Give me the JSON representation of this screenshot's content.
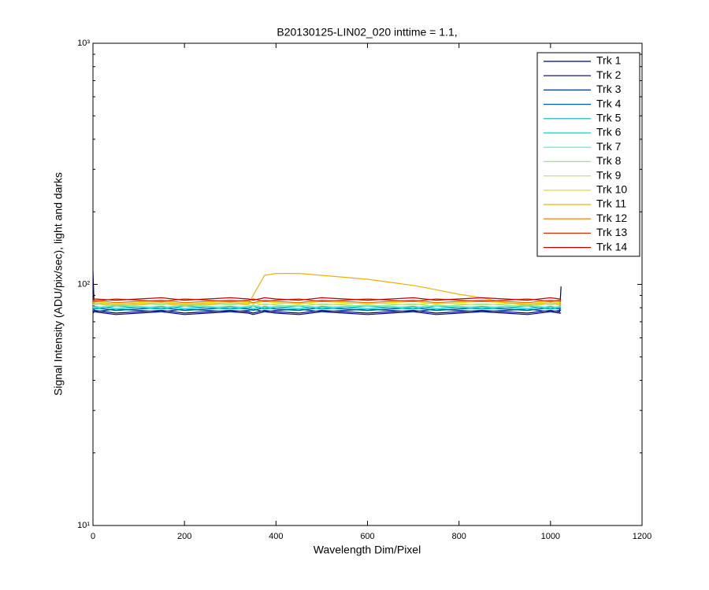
{
  "chart_data": {
    "type": "line",
    "title": "B20130125-LIN02_020 inttime = 1.1,",
    "x_label": "Wavelength Dim/Pixel",
    "y_label": "Signal Intensity (ADU/pix/sec), light and darks",
    "log_y": true,
    "legend": "upper right",
    "xlim": [
      0,
      1200
    ],
    "xticks": [
      0,
      200,
      400,
      600,
      800,
      1000,
      1200
    ],
    "ylim": [
      10,
      1000
    ],
    "yticks": [
      {
        "value": 10,
        "label": "10¹"
      },
      {
        "value": 100,
        "label": "10²"
      },
      {
        "value": 1000,
        "label": "10³"
      }
    ],
    "yminorticks": [
      20,
      30,
      40,
      50,
      60,
      70,
      80,
      90,
      200,
      300,
      400,
      500,
      600,
      700,
      800,
      900
    ],
    "x": [
      0,
      3,
      50,
      100,
      150,
      200,
      250,
      300,
      340,
      350,
      375,
      400,
      450,
      500,
      550,
      600,
      650,
      700,
      750,
      800,
      850,
      900,
      950,
      1000,
      1020,
      1023
    ],
    "series": [
      {
        "name": "Trk 1",
        "color": "#00008f",
        "values": [
          76,
          77,
          75,
          76,
          77,
          75,
          76,
          77,
          76,
          75,
          77,
          76,
          75,
          77,
          76,
          75,
          76,
          77,
          75,
          76,
          77,
          76,
          75,
          77,
          76,
          76
        ]
      },
      {
        "name": "Trk 2",
        "color": "#00006a",
        "values": [
          113,
          78,
          76,
          77,
          78,
          76,
          77,
          78,
          77,
          76,
          78,
          77,
          76,
          78,
          77,
          76,
          77,
          78,
          76,
          77,
          78,
          77,
          76,
          78,
          77,
          98
        ]
      },
      {
        "name": "Trk 3",
        "color": "#0030b0",
        "values": [
          78,
          77,
          79,
          78,
          77,
          79,
          78,
          77,
          78,
          79,
          77,
          78,
          79,
          77,
          78,
          79,
          78,
          77,
          79,
          78,
          77,
          78,
          79,
          77,
          78,
          78
        ]
      },
      {
        "name": "Trk 4",
        "color": "#006090",
        "values": [
          79,
          80,
          78,
          79,
          80,
          78,
          79,
          80,
          79,
          78,
          80,
          79,
          78,
          80,
          79,
          78,
          79,
          80,
          78,
          79,
          80,
          79,
          78,
          80,
          79,
          79
        ]
      },
      {
        "name": "Trk 5",
        "color": "#00b0c0",
        "values": [
          80,
          79,
          81,
          80,
          79,
          81,
          80,
          79,
          80,
          81,
          79,
          80,
          81,
          79,
          80,
          81,
          80,
          79,
          81,
          80,
          79,
          80,
          81,
          79,
          80,
          80
        ]
      },
      {
        "name": "Trk 6",
        "color": "#00d0d8",
        "values": [
          80,
          81,
          79,
          80,
          81,
          79,
          80,
          81,
          80,
          79,
          81,
          80,
          79,
          81,
          80,
          79,
          80,
          81,
          79,
          80,
          81,
          80,
          79,
          81,
          80,
          80
        ]
      },
      {
        "name": "Trk 7",
        "color": "#50e8d8",
        "values": [
          81,
          80,
          82,
          81,
          80,
          82,
          81,
          80,
          81,
          82,
          80,
          81,
          82,
          80,
          81,
          82,
          81,
          80,
          82,
          81,
          80,
          81,
          82,
          80,
          81,
          81
        ]
      },
      {
        "name": "Trk 8",
        "color": "#90e890",
        "values": [
          82,
          83,
          81,
          82,
          83,
          81,
          82,
          83,
          82,
          81,
          83,
          82,
          81,
          83,
          82,
          81,
          82,
          83,
          81,
          82,
          83,
          82,
          81,
          83,
          82,
          82
        ]
      },
      {
        "name": "Trk 9",
        "color": "#c8e850",
        "values": [
          83,
          82,
          84,
          83,
          82,
          84,
          83,
          82,
          83,
          84,
          82,
          83,
          84,
          82,
          83,
          84,
          83,
          82,
          84,
          83,
          82,
          83,
          84,
          82,
          83,
          83
        ]
      },
      {
        "name": "Trk 10",
        "color": "#e0e000",
        "values": [
          84,
          85,
          83,
          84,
          85,
          83,
          84,
          85,
          84,
          83,
          85,
          84,
          83,
          85,
          84,
          83,
          84,
          85,
          83,
          84,
          85,
          84,
          83,
          85,
          84,
          84
        ]
      },
      {
        "name": "Trk 11",
        "color": "#f0b000",
        "values": [
          83,
          84,
          82,
          83,
          84,
          82,
          83,
          84,
          83,
          90,
          109,
          111,
          111,
          109,
          107,
          105,
          102,
          99,
          95,
          91,
          88,
          84,
          82,
          84,
          83,
          83
        ]
      },
      {
        "name": "Trk 12",
        "color": "#f07000",
        "values": [
          85,
          86,
          84,
          85,
          86,
          84,
          85,
          86,
          85,
          84,
          86,
          85,
          84,
          86,
          85,
          84,
          85,
          86,
          84,
          85,
          86,
          85,
          84,
          86,
          85,
          85
        ]
      },
      {
        "name": "Trk 13",
        "color": "#e03000",
        "values": [
          86,
          85,
          87,
          86,
          85,
          87,
          86,
          85,
          86,
          87,
          85,
          86,
          87,
          85,
          86,
          87,
          86,
          85,
          87,
          86,
          85,
          86,
          87,
          85,
          86,
          86
        ]
      },
      {
        "name": "Trk 14",
        "color": "#c00000",
        "values": [
          88,
          87,
          86,
          87,
          88,
          86,
          87,
          88,
          87,
          86,
          88,
          87,
          86,
          88,
          87,
          86,
          87,
          88,
          86,
          87,
          88,
          87,
          86,
          88,
          87,
          87
        ]
      }
    ]
  }
}
